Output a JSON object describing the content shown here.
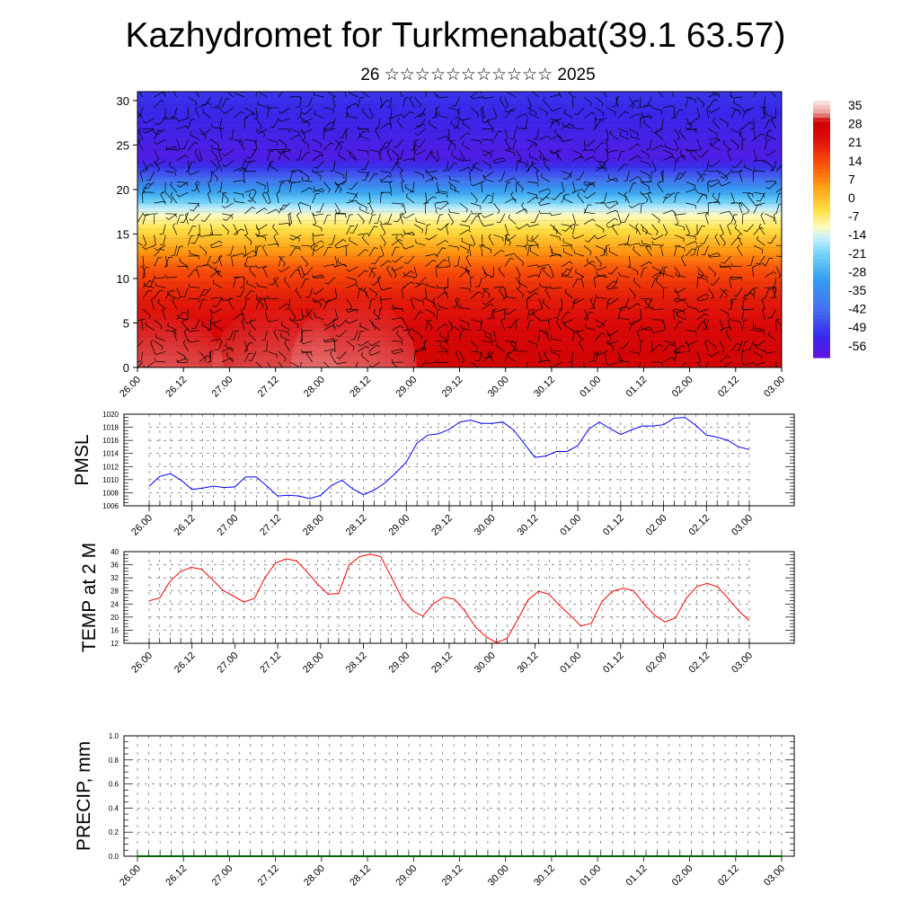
{
  "title": "Kazhydromet for Turkmenabat(39.1 63.57)",
  "subtitle": "26 ☆☆☆☆☆☆☆☆☆☆☆ 2025",
  "time_labels": [
    "26.00",
    "26.12",
    "27.00",
    "27.12",
    "28.00",
    "28.12",
    "29.00",
    "29.12",
    "30.00",
    "30.12",
    "01.00",
    "01.12",
    "02.00",
    "02.12",
    "03.00"
  ],
  "chart_data": [
    {
      "type": "heatmap",
      "name": "cross-section",
      "x_labels": [
        "26.00",
        "26.12",
        "27.00",
        "27.12",
        "28.00",
        "28.12",
        "29.00",
        "29.12",
        "30.00",
        "30.12",
        "01.00",
        "01.12",
        "02.00",
        "02.12",
        "03.00"
      ],
      "y_ticks": [
        0,
        5,
        10,
        15,
        20,
        25,
        30
      ],
      "ylim": [
        0,
        31
      ],
      "overlay": "wind barbs",
      "colorbar": {
        "labels": [
          "35",
          "28",
          "21",
          "14",
          "7",
          "0",
          "-7",
          "-14",
          "-21",
          "-28",
          "-35",
          "-42",
          "-49",
          "-56"
        ],
        "range": [
          -60,
          38
        ]
      },
      "temperature_profile_by_height": [
        {
          "h": 0,
          "t": 27
        },
        {
          "h": 4,
          "t": 25
        },
        {
          "h": 8,
          "t": 21
        },
        {
          "h": 11,
          "t": 14
        },
        {
          "h": 13,
          "t": 6
        },
        {
          "h": 15.5,
          "t": -4
        },
        {
          "h": 17.5,
          "t": -12
        },
        {
          "h": 19.5,
          "t": -28
        },
        {
          "h": 21.5,
          "t": -44
        },
        {
          "h": 23.5,
          "t": -57
        },
        {
          "h": 25.5,
          "t": -55
        },
        {
          "h": 31,
          "t": -50
        }
      ],
      "warm_surface_cells": [
        {
          "x": 0.5,
          "top": 6.5,
          "t": 34
        },
        {
          "x": 3.0,
          "top": 7.0,
          "t": 33
        },
        {
          "x": 4.7,
          "top": 8.0,
          "t": 35
        },
        {
          "x": 7.5,
          "top": 5.0,
          "t": 28
        },
        {
          "x": 11.6,
          "top": 3.5,
          "t": 26
        }
      ]
    },
    {
      "type": "line",
      "name": "PMSL",
      "ylabel": "PMSL",
      "ylim": [
        1006,
        1020
      ],
      "y_ticks": [
        "1006",
        "1008",
        "1010",
        "1012",
        "1014",
        "1016",
        "1018",
        "1020"
      ],
      "x_labels": [
        "26.00",
        "26.12",
        "27.00",
        "27.12",
        "28.00",
        "28.12",
        "29.00",
        "29.12",
        "30.00",
        "30.12",
        "01.00",
        "01.12",
        "02.00",
        "02.12",
        "03.00"
      ],
      "color": "#0000ff",
      "values": [
        1009.0,
        1010.5,
        1010.9,
        1009.9,
        1008.5,
        1008.7,
        1009.0,
        1008.8,
        1008.9,
        1010.4,
        1010.4,
        1009.0,
        1007.5,
        1007.6,
        1007.5,
        1007.1,
        1007.6,
        1009.1,
        1009.9,
        1008.6,
        1007.7,
        1008.4,
        1009.5,
        1011.0,
        1012.7,
        1015.6,
        1016.8,
        1017.0,
        1017.7,
        1018.8,
        1019.1,
        1018.6,
        1018.6,
        1018.8,
        1017.6,
        1015.5,
        1013.4,
        1013.6,
        1014.3,
        1014.3,
        1015.2,
        1017.7,
        1018.8,
        1017.8,
        1016.9,
        1017.6,
        1018.2,
        1018.2,
        1018.4,
        1019.4,
        1019.5,
        1018.3,
        1016.8,
        1016.5,
        1016.0,
        1015.0,
        1014.6
      ]
    },
    {
      "type": "line",
      "name": "TEMP at 2 M",
      "ylabel": "TEMP at 2 M",
      "ylim": [
        12,
        40
      ],
      "y_ticks": [
        "12",
        "16",
        "20",
        "24",
        "28",
        "32",
        "36",
        "40"
      ],
      "x_labels": [
        "26.00",
        "26.12",
        "27.00",
        "27.12",
        "28.00",
        "28.12",
        "29.00",
        "29.12",
        "30.00",
        "30.12",
        "01.00",
        "01.12",
        "02.00",
        "02.12",
        "03.00"
      ],
      "color": "#ff0000",
      "values": [
        25,
        25.8,
        31,
        34,
        35.2,
        34.6,
        31.5,
        28.2,
        26.4,
        24.6,
        25.7,
        32,
        36.5,
        37.8,
        37.2,
        33.8,
        30.1,
        27,
        27.2,
        36,
        38.5,
        39.2,
        38.5,
        32.3,
        25.8,
        21.9,
        20.3,
        24.1,
        26.1,
        25.5,
        21.8,
        16.9,
        14,
        12.2,
        13.5,
        19.2,
        25.3,
        27.9,
        26.9,
        23.5,
        20.5,
        17.3,
        18.1,
        24.7,
        27.9,
        28.8,
        28.1,
        24,
        20.6,
        18.5,
        19.8,
        25.7,
        29.3,
        30.3,
        29.2,
        25.7,
        21.9,
        18.9
      ]
    },
    {
      "type": "line",
      "name": "PRECIP, mm",
      "ylabel": "PRECIP, mm",
      "ylim": [
        0,
        1
      ],
      "y_ticks": [
        "0.0",
        "0.2",
        "0.4",
        "0.6",
        "0.8",
        "1.0"
      ],
      "x_labels": [
        "26.00",
        "26.12",
        "27.00",
        "27.12",
        "28.00",
        "28.12",
        "29.00",
        "29.12",
        "30.00",
        "30.12",
        "01.00",
        "01.12",
        "02.00",
        "02.12",
        "03.00"
      ],
      "color": "#006400",
      "values": [
        0,
        0,
        0,
        0,
        0,
        0,
        0,
        0,
        0,
        0,
        0,
        0,
        0,
        0,
        0,
        0,
        0,
        0,
        0,
        0,
        0,
        0,
        0,
        0,
        0,
        0,
        0,
        0,
        0,
        0,
        0,
        0,
        0,
        0,
        0,
        0,
        0,
        0,
        0,
        0,
        0,
        0,
        0,
        0,
        0,
        0,
        0,
        0,
        0,
        0,
        0,
        0,
        0,
        0,
        0,
        0,
        0,
        0
      ]
    }
  ]
}
